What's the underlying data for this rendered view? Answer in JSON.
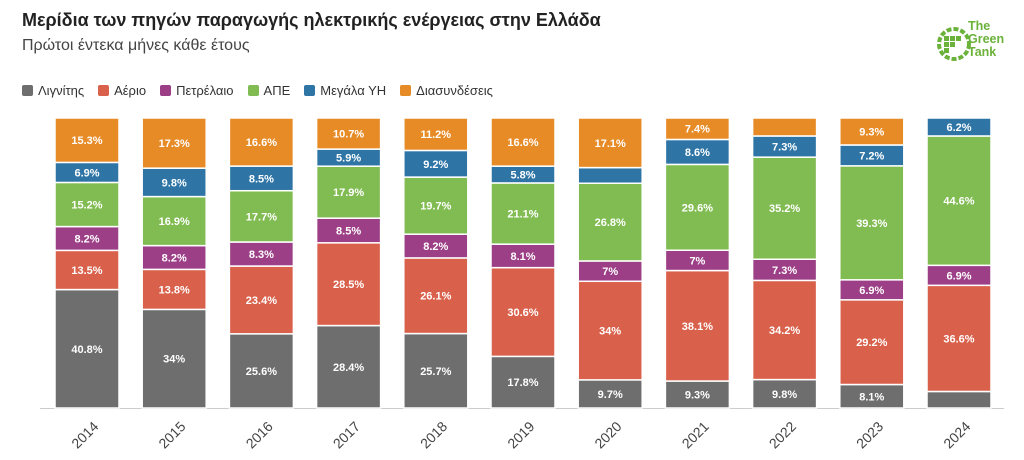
{
  "header": {
    "title": "Μερίδια των πηγών παραγωγής ηλεκτρικής ενέργειας στην Ελλάδα",
    "subtitle": "Πρώτοι έντεκα μήνες κάθε έτους"
  },
  "logo": {
    "line1": "The",
    "line2": "Green",
    "line3": "Tank",
    "color": "#6bb23a"
  },
  "chart_data": {
    "type": "bar",
    "stacked": true,
    "percent_stacked": true,
    "categories": [
      "2014",
      "2015",
      "2016",
      "2017",
      "2018",
      "2019",
      "2020",
      "2021",
      "2022",
      "2023",
      "2024"
    ],
    "series": [
      {
        "name": "Λιγνίτης",
        "color": "#6e6e6e",
        "values": [
          40.8,
          34,
          25.6,
          28.4,
          25.7,
          17.8,
          9.7,
          9.3,
          9.8,
          8.1,
          5.7
        ]
      },
      {
        "name": "Αέριο",
        "color": "#d9604a",
        "values": [
          13.5,
          13.8,
          23.4,
          28.5,
          26.1,
          30.6,
          34,
          38.1,
          34.2,
          29.2,
          36.6
        ]
      },
      {
        "name": "Πετρέλαιο",
        "color": "#9c3f87",
        "values": [
          8.2,
          8.2,
          8.3,
          8.5,
          8.2,
          8.1,
          7,
          7,
          7.3,
          6.9,
          6.9
        ]
      },
      {
        "name": "ΑΠΕ",
        "color": "#80bc52",
        "values": [
          15.2,
          16.9,
          17.7,
          17.9,
          19.7,
          21.1,
          26.8,
          29.6,
          35.2,
          39.3,
          44.6
        ]
      },
      {
        "name": "Μεγάλα ΥΗ",
        "color": "#2e75a6",
        "values": [
          6.9,
          9.8,
          8.5,
          5.9,
          9.2,
          5.8,
          5.4,
          8.6,
          7.3,
          7.2,
          6.2
        ]
      },
      {
        "name": "Διασυνδέσεις",
        "color": "#e78b26",
        "values": [
          15.3,
          17.3,
          16.6,
          10.7,
          11.2,
          16.6,
          17.1,
          7.4,
          6.2,
          9.3,
          0
        ]
      }
    ],
    "labels": [
      [
        "40.8%",
        "13.5%",
        "8.2%",
        "15.2%",
        "6.9%",
        "15.3%"
      ],
      [
        "34%",
        "13.8%",
        "8.2%",
        "16.9%",
        "9.8%",
        "17.3%"
      ],
      [
        "25.6%",
        "23.4%",
        "8.3%",
        "17.7%",
        "8.5%",
        "16.6%"
      ],
      [
        "28.4%",
        "28.5%",
        "8.5%",
        "17.9%",
        "5.9%",
        "10.7%"
      ],
      [
        "25.7%",
        "26.1%",
        "8.2%",
        "19.7%",
        "9.2%",
        "11.2%"
      ],
      [
        "17.8%",
        "30.6%",
        "8.1%",
        "21.1%",
        "5.8%",
        "16.6%"
      ],
      [
        "9.7%",
        "34%",
        "7%",
        "26.8%",
        "",
        "17.1%"
      ],
      [
        "9.3%",
        "38.1%",
        "7%",
        "29.6%",
        "8.6%",
        "7.4%"
      ],
      [
        "9.8%",
        "34.2%",
        "7.3%",
        "35.2%",
        "7.3%",
        ""
      ],
      [
        "8.1%",
        "29.2%",
        "6.9%",
        "39.3%",
        "7.2%",
        "9.3%"
      ],
      [
        "",
        "36.6%",
        "6.9%",
        "44.6%",
        "6.2%",
        ""
      ]
    ],
    "ylim": [
      0,
      100
    ],
    "grid": false,
    "legend_position": "top-left"
  }
}
